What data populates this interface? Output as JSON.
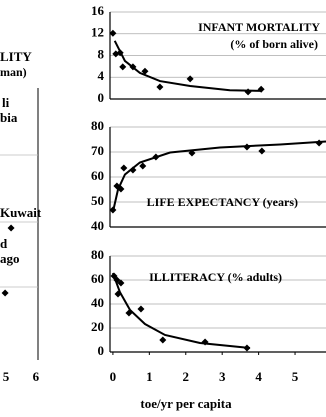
{
  "chart_data": [
    {
      "type": "scatter",
      "title": "LITY",
      "subtitle": "man)",
      "annotations": [
        "li",
        "bia",
        "Kuwait",
        "d",
        "ago"
      ],
      "x": [
        5.17,
        4.97
      ],
      "xlim": [
        4.8,
        6.07
      ],
      "xticks": [
        5,
        6
      ],
      "color": "#000000"
    },
    {
      "type": "scatter",
      "title": "INFANT MORTALITY",
      "subtitle": "(% of born alive)",
      "x": [
        0,
        0.08,
        0.2,
        0.27,
        0.55,
        0.88,
        1.29,
        2.12,
        3.71,
        4.07
      ],
      "values": [
        12.1,
        8.3,
        8.5,
        5.9,
        5.9,
        5.1,
        2.2,
        3.7,
        1.3,
        1.8
      ],
      "trend_x": [
        0.05,
        0.33,
        0.74,
        1.29,
        2.12,
        3.21,
        4.09
      ],
      "trend_values": [
        10.7,
        7.0,
        4.8,
        3.3,
        2.4,
        1.6,
        1.5
      ],
      "xlim": [
        -0.08,
        5.85
      ],
      "ylim": [
        0,
        16
      ],
      "yticks": [
        0,
        4,
        8,
        12,
        16
      ],
      "grid": true,
      "color": "#000000"
    },
    {
      "type": "scatter",
      "title": "LIFE EXPECTANCY (years)",
      "x": [
        0,
        0.11,
        0.22,
        0.3,
        0.55,
        0.82,
        1.18,
        2.17,
        3.68,
        4.09,
        5.66
      ],
      "values": [
        46.8,
        56.4,
        55.2,
        63.6,
        62.8,
        64.4,
        68,
        69.6,
        72,
        70.4,
        73.6
      ],
      "trend_x": [
        0,
        0.14,
        0.33,
        0.74,
        1.57,
        2.94,
        4.59,
        5.85
      ],
      "trend_values": [
        46,
        55,
        61,
        65.8,
        69.8,
        71.8,
        73,
        74.2
      ],
      "xlim": [
        -0.08,
        5.85
      ],
      "ylim": [
        40,
        80
      ],
      "yticks": [
        40,
        50,
        60,
        70,
        80
      ],
      "grid": true,
      "color": "#000000"
    },
    {
      "type": "scatter",
      "title": "ILLITERACY (% adults)",
      "xlabel": "toe/yr per capita",
      "x": [
        0.03,
        0.11,
        0.22,
        0.14,
        0.44,
        0.77,
        1.37,
        2.53,
        3.68
      ],
      "values": [
        63.3,
        60,
        57.5,
        48.3,
        32.5,
        35.8,
        10,
        8.3,
        3.3
      ],
      "trend_x": [
        0,
        0.19,
        0.47,
        0.88,
        1.43,
        2.39,
        3.76
      ],
      "trend_values": [
        65.8,
        50,
        35,
        23.3,
        14.2,
        7.5,
        3.3
      ],
      "xlim": [
        -0.08,
        5.85
      ],
      "ylim": [
        0,
        80
      ],
      "yticks": [
        0,
        20,
        40,
        60,
        80
      ],
      "xticks": [
        0,
        1,
        2,
        3,
        4,
        5
      ],
      "grid": true,
      "color": "#000000"
    }
  ]
}
